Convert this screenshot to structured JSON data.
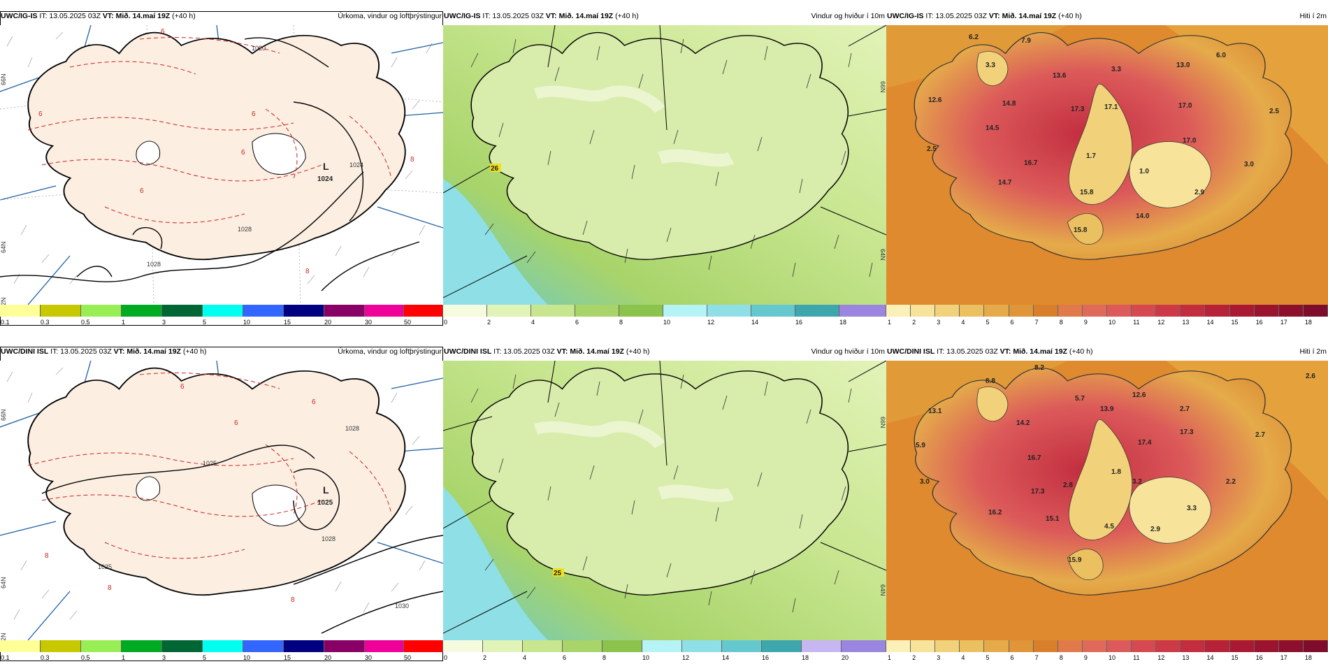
{
  "panels": [
    {
      "title_model": "UWC/IG-IS",
      "title_it": "IT: 13.05.2025 03Z",
      "title_vt_label": "VT:",
      "title_vt": "Mið. 14.maí 19Z",
      "title_lead": "(+40 h)",
      "title_right": "Úrkoma, vindur og loftþrýstingur",
      "low_label": "L",
      "low_value": "1024",
      "iso_labels": [
        "1020",
        "1024",
        "1028",
        "1028"
      ],
      "red_labels": [
        "6",
        "6",
        "6",
        "6",
        "6",
        "8",
        "8"
      ],
      "lat_labels": [
        "66N",
        "64N",
        "62N"
      ]
    },
    {
      "title_model": "UWC/IG-IS",
      "title_it": "IT: 13.05.2025 03Z",
      "title_vt_label": "VT:",
      "title_vt": "Mið. 14.maí 19Z",
      "title_lead": "(+40 h)",
      "title_right": "Vindur og hviður í 10m",
      "gust_label": "26",
      "lat_labels": [
        "66N",
        "64N"
      ]
    },
    {
      "title_model": "UWC/IG-IS",
      "title_it": "IT: 13.05.2025 03Z",
      "title_vt_label": "VT:",
      "title_vt": "Mið. 14.maí 19Z",
      "title_lead": "(+40 h)",
      "title_right": "Hiti í 2m",
      "temps": [
        "6.2",
        "7.9",
        "3.3",
        "13.6",
        "3.3",
        "13.0",
        "6.0",
        "12.6",
        "14.8",
        "17.3",
        "17.1",
        "17.0",
        "2.5",
        "14.5",
        "2.5",
        "17.0",
        "16.7",
        "1.7",
        "3.0",
        "1.0",
        "14.7",
        "15.8",
        "2.9",
        "14.0",
        "15.8"
      ]
    },
    {
      "title_model": "UWC/DINI ISL",
      "title_it": "IT: 13.05.2025 03Z",
      "title_vt_label": "VT:",
      "title_vt": "Mið. 14.maí 19Z",
      "title_lead": "(+40 h)",
      "title_right": "Úrkoma, vindur og loftþrýstingur",
      "low_label": "L",
      "low_value": "1025",
      "iso_labels": [
        "1025",
        "1028",
        "1028",
        "1025",
        "1030"
      ],
      "red_labels": [
        "6",
        "6",
        "6",
        "8",
        "8",
        "8"
      ],
      "lat_labels": [
        "66N",
        "64N",
        "62N"
      ]
    },
    {
      "title_model": "UWC/DINI ISL",
      "title_it": "IT: 13.05.2025 03Z",
      "title_vt_label": "VT:",
      "title_vt": "Mið. 14.maí 19Z",
      "title_lead": "(+40 h)",
      "title_right": "Vindur og hviður í 10m",
      "gust_label": "25",
      "lat_labels": [
        "66N",
        "64N"
      ]
    },
    {
      "title_model": "UWC/DINI ISL",
      "title_it": "IT: 13.05.2025 03Z",
      "title_vt_label": "VT:",
      "title_vt": "Mið. 14.maí 19Z",
      "title_lead": "(+40 h)",
      "title_right": "Hiti í 2m",
      "temps": [
        "8.2",
        "2.6",
        "8.8",
        "5.7",
        "12.6",
        "13.1",
        "13.9",
        "2.7",
        "14.2",
        "17.3",
        "2.7",
        "5.9",
        "17.4",
        "16.7",
        "1.8",
        "3.0",
        "2.8",
        "3.2",
        "2.2",
        "17.3",
        "3.3",
        "16.2",
        "15.1",
        "4.5",
        "2.9",
        "15.9"
      ]
    }
  ],
  "colorbars": {
    "precip": {
      "labels": [
        "0.1",
        "0.3",
        "0.5",
        "1",
        "3",
        "5",
        "10",
        "15",
        "20",
        "30",
        "50"
      ],
      "colors": [
        "#ffff99",
        "#c8c800",
        "#99ee55",
        "#00aa22",
        "#006633",
        "#00ffee",
        "#3366ff",
        "#000080",
        "#880066",
        "#ee0099",
        "#ff0000"
      ]
    },
    "wind_top": {
      "labels": [
        "0",
        "2",
        "4",
        "6",
        "8",
        "10",
        "12",
        "14",
        "16",
        "18"
      ],
      "colors": [
        "#f6fbe0",
        "#e2f3b8",
        "#c8e690",
        "#a8d46a",
        "#8cc34c",
        "#b6f3f6",
        "#8fe0e6",
        "#66c8cf",
        "#3ea7ae",
        "#c6b6f2",
        "#9a85e0"
      ]
    },
    "wind_bot": {
      "labels": [
        "0",
        "2",
        "4",
        "6",
        "8",
        "10",
        "12",
        "14",
        "16",
        "18",
        "20"
      ],
      "colors": [
        "#f6fbe0",
        "#e2f3b8",
        "#c8e690",
        "#a8d46a",
        "#8cc34c",
        "#b6f3f6",
        "#a2eaee",
        "#7fd6dc",
        "#55bec5",
        "#2ea4ab",
        "#c6b6f2",
        "#9a85e0",
        "#7a66cc"
      ]
    },
    "temp": {
      "labels": [
        "1",
        "2",
        "3",
        "4",
        "5",
        "6",
        "7",
        "8",
        "9",
        "10",
        "11",
        "12",
        "13",
        "14",
        "15",
        "16",
        "17",
        "18"
      ],
      "colors": [
        "#fbf1b8",
        "#f7e49a",
        "#f1d27a",
        "#ebc060",
        "#e5ab4a",
        "#df9538",
        "#d97f2c",
        "#e07a4a",
        "#e06a5a",
        "#dc5a5a",
        "#d44a50",
        "#cc3a48",
        "#c22e40",
        "#b62238",
        "#a81a34",
        "#9a1430",
        "#8c102e",
        "#7e0c2c"
      ]
    }
  }
}
